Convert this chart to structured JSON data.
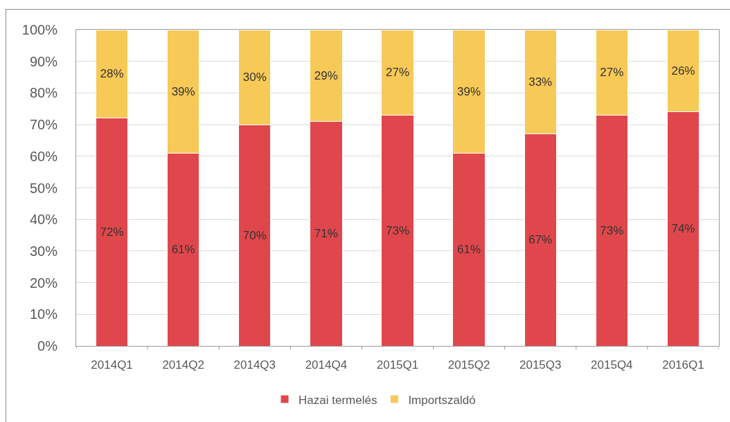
{
  "chart_data": {
    "type": "bar",
    "stacked": true,
    "categories": [
      "2014Q1",
      "2014Q2",
      "2014Q3",
      "2014Q4",
      "2015Q1",
      "2015Q2",
      "2015Q3",
      "2015Q4",
      "2016Q1"
    ],
    "series": [
      {
        "name": "Hazai termelés",
        "color": "#e0474c",
        "values": [
          72,
          61,
          70,
          71,
          73,
          61,
          67,
          73,
          74
        ],
        "value_labels": [
          "72%",
          "61%",
          "70%",
          "71%",
          "73%",
          "61%",
          "67%",
          "73%",
          "74%"
        ]
      },
      {
        "name": "Importszaldó",
        "color": "#f7c957",
        "values": [
          28,
          39,
          30,
          29,
          27,
          39,
          33,
          27,
          26
        ],
        "value_labels": [
          "28%",
          "39%",
          "30%",
          "29%",
          "27%",
          "39%",
          "33%",
          "27%",
          "26%"
        ]
      }
    ],
    "ylim": [
      0,
      100
    ],
    "yticks": [
      {
        "value": 0,
        "label": "0%"
      },
      {
        "value": 10,
        "label": "10%"
      },
      {
        "value": 20,
        "label": "20%"
      },
      {
        "value": 30,
        "label": "30%"
      },
      {
        "value": 40,
        "label": "40%"
      },
      {
        "value": 50,
        "label": "50%"
      },
      {
        "value": 60,
        "label": "60%"
      },
      {
        "value": 70,
        "label": "70%"
      },
      {
        "value": 80,
        "label": "80%"
      },
      {
        "value": 90,
        "label": "90%"
      },
      {
        "value": 100,
        "label": "100%"
      }
    ],
    "grid": "y",
    "legend": "bottom"
  }
}
